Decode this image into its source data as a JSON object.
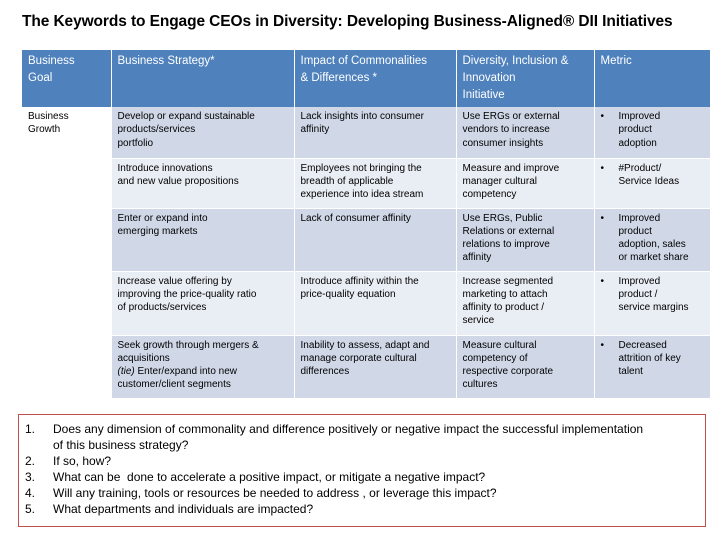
{
  "title": "The Keywords to Engage CEOs in Diversity: Developing Business-Aligned® DII Initiatives",
  "table": {
    "headers": [
      [
        "Business",
        "Goal"
      ],
      [
        "Business Strategy*"
      ],
      [
        "Impact of Commonalities",
        "& Differences *"
      ],
      [
        "Diversity, Inclusion &",
        "Innovation",
        "Initiative"
      ],
      [
        "Metric"
      ]
    ],
    "goal": [
      "Business",
      "Growth"
    ],
    "rows": [
      {
        "strategy": [
          "Develop or expand sustainable",
          "products/services",
          "portfolio"
        ],
        "impact": [
          "Lack insights into consumer",
          "affinity"
        ],
        "initiative": [
          "Use ERGs or external",
          "vendors to increase",
          "consumer insights"
        ],
        "metric_bullet": "•",
        "metric": [
          "Improved",
          "product",
          "adoption"
        ]
      },
      {
        "strategy": [
          "Introduce innovations",
          "and new value propositions"
        ],
        "impact": [
          "Employees not bringing the",
          "breadth of applicable",
          "experience into idea stream"
        ],
        "initiative": [
          "Measure and improve",
          "manager cultural",
          "competency"
        ],
        "metric_bullet": "•",
        "metric": [
          "#Product/",
          "Service Ideas"
        ]
      },
      {
        "strategy": [
          "Enter or expand into",
          "emerging markets"
        ],
        "impact": [
          "Lack of consumer affinity"
        ],
        "initiative": [
          "Use ERGs, Public",
          "Relations or external",
          "relations to improve",
          "affinity"
        ],
        "metric_bullet": "•",
        "metric": [
          "Improved",
          "product",
          "adoption, sales",
          "or market share"
        ]
      },
      {
        "strategy": [
          "Increase value offering by",
          "improving the price-quality ratio",
          "of products/services"
        ],
        "impact": [
          "Introduce affinity within the",
          "price-quality equation"
        ],
        "initiative": [
          "Increase segmented",
          "marketing to attach",
          "affinity to product /",
          "service"
        ],
        "metric_bullet": "•",
        "metric": [
          "Improved",
          "product /",
          "service margins"
        ]
      },
      {
        "strategy": [
          "Seek growth through mergers &",
          "acquisitions"
        ],
        "strategy_tie": "(tie)",
        "strategy_tail": [
          " Enter/expand into new",
          "customer/client segments"
        ],
        "impact": [
          "Inability to assess, adapt and",
          "manage corporate cultural",
          "differences"
        ],
        "initiative": [
          "Measure cultural",
          "competency of",
          "respective corporate",
          "cultures"
        ],
        "metric_bullet": "•",
        "metric": [
          "Decreased",
          "attrition of key",
          "talent"
        ]
      }
    ]
  },
  "questions": [
    {
      "num": "1.",
      "lines": [
        "Does any dimension of commonality and difference positively or negative impact the successful implementation",
        "of this business strategy?"
      ]
    },
    {
      "num": "2.",
      "lines": [
        "If so, how?"
      ]
    },
    {
      "num": "3.",
      "lines": [
        "What can be  done to accelerate a positive impact, or mitigate a negative impact?"
      ]
    },
    {
      "num": "4.",
      "lines": [
        "Will any training, tools or resources be needed to address , or leverage this impact?"
      ]
    },
    {
      "num": "5.",
      "lines": [
        "What departments and individuals are impacted?"
      ]
    }
  ]
}
